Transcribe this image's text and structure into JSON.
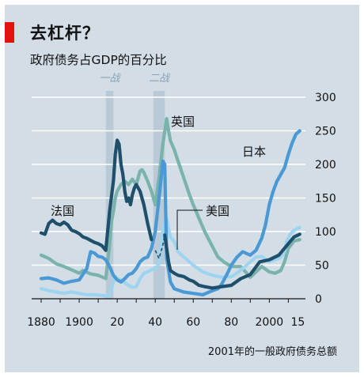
{
  "title": "去杠杆？",
  "subtitle": "政府债务占GDP的百分比",
  "footnote": "2001年的一般政府债务总额",
  "colors": {
    "background": "#d2dde6",
    "accent": "#e3120b",
    "war_band": "#b9c9d6"
  },
  "chart_data": {
    "type": "line",
    "title": "去杠杆？",
    "subtitle": "政府债务占GDP的百分比",
    "xlabel": "",
    "ylabel": "",
    "xlim": [
      1875,
      2019
    ],
    "ylim": [
      0,
      300
    ],
    "yticks": [
      0,
      50,
      100,
      150,
      200,
      250,
      300
    ],
    "ytick_labels": [
      "0",
      "50",
      "100",
      "150",
      "200",
      "250",
      "300"
    ],
    "xticks": [
      1880,
      1900,
      1920,
      1940,
      1960,
      1980,
      2000,
      2015
    ],
    "xtick_labels": [
      "1880",
      "1900",
      "20",
      "40",
      "60",
      "80",
      "2000",
      "15"
    ],
    "grid": "horizontal",
    "legend": "inline-labels",
    "war_periods": [
      {
        "label": "一战",
        "start": 1914,
        "end": 1918
      },
      {
        "label": "二战",
        "start": 1939,
        "end": 1945
      }
    ],
    "series": [
      {
        "name": "法国",
        "color": "#1e4f6b",
        "points": [
          [
            1880,
            98
          ],
          [
            1882,
            96
          ],
          [
            1884,
            112
          ],
          [
            1886,
            117
          ],
          [
            1888,
            112
          ],
          [
            1890,
            110
          ],
          [
            1892,
            114
          ],
          [
            1894,
            110
          ],
          [
            1896,
            102
          ],
          [
            1898,
            100
          ],
          [
            1900,
            97
          ],
          [
            1902,
            92
          ],
          [
            1904,
            90
          ],
          [
            1906,
            87
          ],
          [
            1908,
            84
          ],
          [
            1910,
            82
          ],
          [
            1912,
            79
          ],
          [
            1914,
            72
          ],
          [
            1916,
            130
          ],
          [
            1918,
            175
          ],
          [
            1919,
            215
          ],
          [
            1920,
            236
          ],
          [
            1921,
            230
          ],
          [
            1922,
            200
          ],
          [
            1923,
            185
          ],
          [
            1924,
            160
          ],
          [
            1925,
            145
          ],
          [
            1926,
            150
          ],
          [
            1927,
            140
          ],
          [
            1928,
            155
          ],
          [
            1929,
            165
          ],
          [
            1930,
            170
          ],
          [
            1932,
            160
          ],
          [
            1934,
            140
          ],
          [
            1936,
            112
          ],
          [
            1938,
            88
          ],
          [
            1940,
            72
          ],
          [
            1942,
            60
          ],
          [
            1944,
            80
          ],
          [
            1945,
            95
          ],
          [
            1946,
            75
          ],
          [
            1947,
            55
          ],
          [
            1948,
            42
          ],
          [
            1950,
            38
          ],
          [
            1952,
            35
          ],
          [
            1955,
            33
          ],
          [
            1958,
            28
          ],
          [
            1960,
            26
          ],
          [
            1963,
            20
          ],
          [
            1966,
            18
          ],
          [
            1970,
            16
          ],
          [
            1975,
            18
          ],
          [
            1980,
            20
          ],
          [
            1985,
            30
          ],
          [
            1990,
            36
          ],
          [
            1995,
            55
          ],
          [
            2000,
            58
          ],
          [
            2005,
            65
          ],
          [
            2010,
            82
          ],
          [
            2013,
            92
          ],
          [
            2016,
            96
          ]
        ],
        "gaps": [
          [
            1939,
            1945
          ]
        ]
      },
      {
        "name": "英国",
        "color": "#7ab2ac",
        "points": [
          [
            1880,
            65
          ],
          [
            1884,
            60
          ],
          [
            1888,
            52
          ],
          [
            1892,
            48
          ],
          [
            1896,
            43
          ],
          [
            1900,
            38
          ],
          [
            1902,
            42
          ],
          [
            1906,
            37
          ],
          [
            1910,
            35
          ],
          [
            1914,
            30
          ],
          [
            1916,
            80
          ],
          [
            1917,
            115
          ],
          [
            1918,
            130
          ],
          [
            1919,
            150
          ],
          [
            1920,
            160
          ],
          [
            1922,
            170
          ],
          [
            1924,
            175
          ],
          [
            1926,
            170
          ],
          [
            1928,
            178
          ],
          [
            1930,
            170
          ],
          [
            1932,
            190
          ],
          [
            1933,
            192
          ],
          [
            1934,
            188
          ],
          [
            1936,
            175
          ],
          [
            1938,
            160
          ],
          [
            1939,
            150
          ],
          [
            1940,
            140
          ],
          [
            1942,
            180
          ],
          [
            1944,
            230
          ],
          [
            1946,
            268
          ],
          [
            1947,
            250
          ],
          [
            1948,
            235
          ],
          [
            1950,
            222
          ],
          [
            1952,
            205
          ],
          [
            1955,
            180
          ],
          [
            1958,
            155
          ],
          [
            1960,
            140
          ],
          [
            1963,
            120
          ],
          [
            1966,
            100
          ],
          [
            1970,
            78
          ],
          [
            1973,
            62
          ],
          [
            1976,
            55
          ],
          [
            1980,
            48
          ],
          [
            1985,
            48
          ],
          [
            1990,
            32
          ],
          [
            1993,
            40
          ],
          [
            1996,
            48
          ],
          [
            2000,
            40
          ],
          [
            2003,
            38
          ],
          [
            2006,
            42
          ],
          [
            2008,
            55
          ],
          [
            2010,
            75
          ],
          [
            2013,
            86
          ],
          [
            2016,
            88
          ]
        ]
      },
      {
        "name": "美国",
        "color": "#9fd4f0",
        "points": [
          [
            1880,
            15
          ],
          [
            1884,
            12
          ],
          [
            1888,
            10
          ],
          [
            1892,
            8
          ],
          [
            1896,
            10
          ],
          [
            1900,
            8
          ],
          [
            1904,
            6
          ],
          [
            1908,
            6
          ],
          [
            1912,
            5
          ],
          [
            1914,
            4
          ],
          [
            1916,
            5
          ],
          [
            1917,
            15
          ],
          [
            1918,
            25
          ],
          [
            1919,
            33
          ],
          [
            1920,
            30
          ],
          [
            1922,
            28
          ],
          [
            1924,
            24
          ],
          [
            1926,
            20
          ],
          [
            1928,
            17
          ],
          [
            1930,
            18
          ],
          [
            1932,
            30
          ],
          [
            1934,
            38
          ],
          [
            1936,
            40
          ],
          [
            1938,
            43
          ],
          [
            1940,
            45
          ],
          [
            1942,
            52
          ],
          [
            1943,
            80
          ],
          [
            1944,
            100
          ],
          [
            1945,
            115
          ],
          [
            1946,
            120
          ],
          [
            1947,
            103
          ],
          [
            1948,
            92
          ],
          [
            1950,
            85
          ],
          [
            1952,
            70
          ],
          [
            1955,
            62
          ],
          [
            1958,
            55
          ],
          [
            1960,
            50
          ],
          [
            1965,
            40
          ],
          [
            1970,
            35
          ],
          [
            1975,
            32
          ],
          [
            1980,
            33
          ],
          [
            1983,
            38
          ],
          [
            1986,
            45
          ],
          [
            1990,
            55
          ],
          [
            1993,
            62
          ],
          [
            1996,
            63
          ],
          [
            2000,
            55
          ],
          [
            2003,
            58
          ],
          [
            2006,
            62
          ],
          [
            2008,
            70
          ],
          [
            2009,
            85
          ],
          [
            2011,
            96
          ],
          [
            2013,
            102
          ],
          [
            2016,
            106
          ]
        ]
      },
      {
        "name": "日本",
        "color": "#4a99d4",
        "points": [
          [
            1880,
            30
          ],
          [
            1884,
            31
          ],
          [
            1888,
            28
          ],
          [
            1892,
            23
          ],
          [
            1896,
            26
          ],
          [
            1900,
            28
          ],
          [
            1904,
            45
          ],
          [
            1906,
            70
          ],
          [
            1908,
            68
          ],
          [
            1910,
            63
          ],
          [
            1912,
            62
          ],
          [
            1914,
            58
          ],
          [
            1916,
            48
          ],
          [
            1918,
            35
          ],
          [
            1920,
            28
          ],
          [
            1922,
            25
          ],
          [
            1924,
            30
          ],
          [
            1926,
            36
          ],
          [
            1928,
            38
          ],
          [
            1930,
            45
          ],
          [
            1932,
            55
          ],
          [
            1934,
            60
          ],
          [
            1936,
            62
          ],
          [
            1938,
            75
          ],
          [
            1940,
            100
          ],
          [
            1942,
            150
          ],
          [
            1944,
            205
          ],
          [
            1945,
            200
          ],
          [
            1946,
            60
          ],
          [
            1948,
            25
          ],
          [
            1950,
            15
          ],
          [
            1955,
            10
          ],
          [
            1960,
            8
          ],
          [
            1965,
            6
          ],
          [
            1970,
            12
          ],
          [
            1973,
            15
          ],
          [
            1975,
            22
          ],
          [
            1978,
            38
          ],
          [
            1980,
            50
          ],
          [
            1983,
            62
          ],
          [
            1986,
            70
          ],
          [
            1990,
            65
          ],
          [
            1993,
            72
          ],
          [
            1996,
            90
          ],
          [
            1998,
            110
          ],
          [
            2000,
            140
          ],
          [
            2002,
            160
          ],
          [
            2004,
            175
          ],
          [
            2006,
            185
          ],
          [
            2008,
            195
          ],
          [
            2010,
            215
          ],
          [
            2012,
            232
          ],
          [
            2014,
            245
          ],
          [
            2016,
            250
          ]
        ]
      }
    ]
  }
}
